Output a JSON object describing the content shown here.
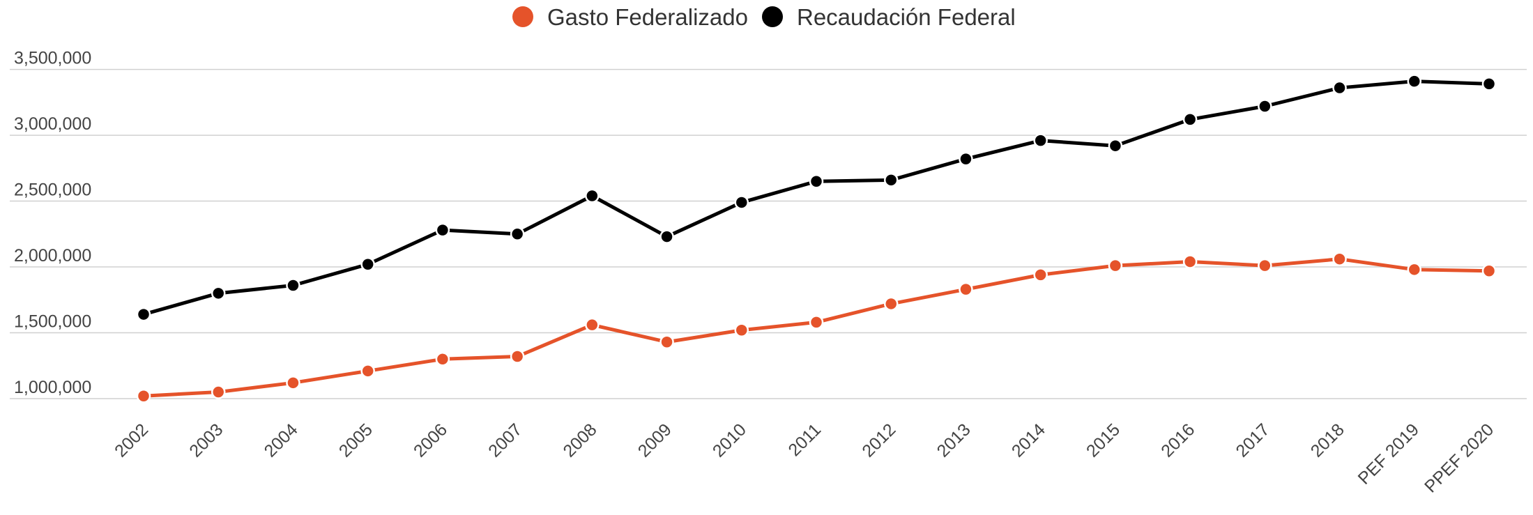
{
  "chart_data": {
    "type": "line",
    "categories": [
      "2002",
      "2003",
      "2004",
      "2005",
      "2006",
      "2007",
      "2008",
      "2009",
      "2010",
      "2011",
      "2012",
      "2013",
      "2014",
      "2015",
      "2016",
      "2017",
      "2018",
      "PEF 2019",
      "PPEF 2020"
    ],
    "series": [
      {
        "name": "Gasto Federalizado",
        "color": "#e5532a",
        "values": [
          1020000,
          1050000,
          1120000,
          1210000,
          1300000,
          1320000,
          1560000,
          1430000,
          1520000,
          1580000,
          1720000,
          1830000,
          1940000,
          2010000,
          2040000,
          2010000,
          2060000,
          1980000,
          1970000
        ]
      },
      {
        "name": "Recaudación Federal",
        "color": "#000000",
        "values": [
          1640000,
          1800000,
          1860000,
          2020000,
          2280000,
          2250000,
          2540000,
          2230000,
          2490000,
          2650000,
          2660000,
          2820000,
          2960000,
          2920000,
          3120000,
          3220000,
          3360000,
          3410000,
          3390000
        ]
      }
    ],
    "ylim": [
      1000000,
      3500000
    ],
    "yticks": [
      {
        "value": 1000000,
        "label": "1,000,000"
      },
      {
        "value": 1500000,
        "label": "1,500,000"
      },
      {
        "value": 2000000,
        "label": "2,000,000"
      },
      {
        "value": 2500000,
        "label": "2,500,000"
      },
      {
        "value": 3000000,
        "label": "3,000,000"
      },
      {
        "value": 3500000,
        "label": "3,500,000"
      }
    ],
    "grid": true,
    "legend": "top"
  }
}
